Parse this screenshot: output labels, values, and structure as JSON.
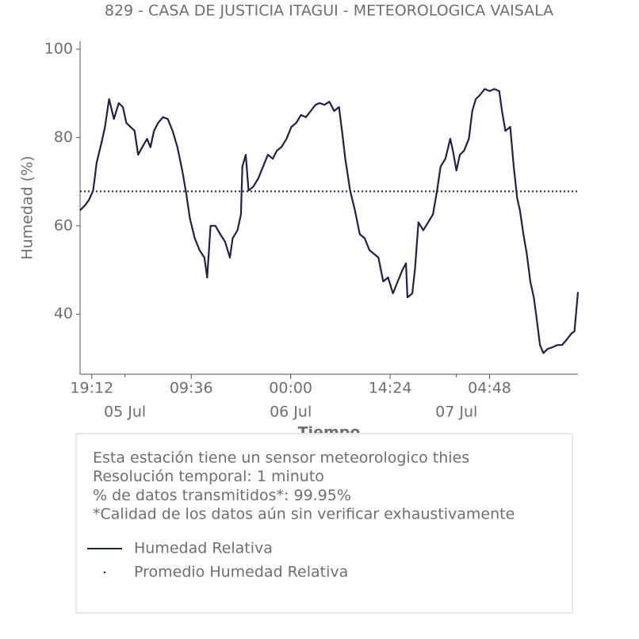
{
  "chart_data": {
    "type": "line",
    "title": "829 - CASA DE JUSTICIA ITAGUI - METEOROLOGICA VAISALA",
    "xlabel": "Tiempo",
    "ylabel": "Humedad (%)",
    "x": [
      -6.5,
      -5.7,
      -5.2,
      -4.6,
      -4.1,
      -3.4,
      -2.9,
      -2.3,
      -1.6,
      -0.9,
      -0.3,
      0.2,
      0.8,
      1.4,
      1.9,
      2.5,
      3.2,
      3.7,
      4.2,
      4.8,
      5.5,
      6.2,
      6.9,
      7.6,
      8.3,
      8.9,
      9.4,
      10.1,
      10.8,
      11.5,
      11.9,
      12.4,
      13.1,
      13.8,
      14.5,
      15.2,
      15.6,
      16.3,
      16.8,
      17.0,
      17.5,
      17.9,
      18.6,
      19.3,
      20.0,
      20.7,
      21.4,
      22.0,
      22.7,
      23.4,
      24.1,
      24.8,
      25.5,
      26.2,
      26.9,
      27.6,
      28.2,
      28.9,
      29.6,
      30.3,
      31.0,
      31.5,
      31.9,
      32.6,
      33.3,
      34.0,
      34.7,
      35.4,
      36.1,
      36.7,
      37.4,
      38.1,
      38.8,
      39.5,
      40.2,
      40.7,
      40.9,
      41.6,
      42.0,
      42.5,
      43.2,
      43.9,
      44.6,
      45.2,
      45.7,
      46.4,
      47.1,
      47.5,
      48.0,
      48.5,
      49.1,
      49.8,
      50.3,
      50.8,
      51.4,
      52.1,
      52.8,
      53.5,
      54.2,
      54.6,
      55.1,
      55.8,
      56.3,
      56.8,
      57.2,
      57.7,
      58.2,
      58.7,
      59.2,
      59.6,
      60.1,
      60.6,
      61.2,
      61.9,
      62.6,
      63.3,
      64.0,
      64.7,
      65.1,
      65.6
    ],
    "series": [
      {
        "name": "Humedad Relativa",
        "color": "#20204a",
        "values": [
          63.5,
          64.8,
          65.9,
          68,
          74.3,
          78.8,
          82.4,
          88.7,
          84.2,
          87.8,
          86.9,
          83.3,
          82.4,
          81.5,
          76.1,
          77.8,
          79.7,
          77.8,
          81.5,
          83.3,
          84.6,
          84.2,
          81.5,
          77.8,
          72.5,
          67.1,
          61.7,
          57.2,
          54.5,
          52.8,
          48.3,
          60,
          60,
          58.1,
          56.4,
          52.8,
          57.2,
          59,
          62.6,
          73.4,
          76.1,
          68,
          68.9,
          70.7,
          73.4,
          76.1,
          75.2,
          77,
          77.9,
          79.7,
          82.4,
          83.3,
          85.1,
          84.6,
          86,
          87.4,
          87.8,
          87.4,
          88.1,
          86,
          86.9,
          80.6,
          75.2,
          68,
          63.5,
          58.1,
          57.2,
          54.5,
          53.6,
          52.8,
          47.4,
          48.3,
          44.7,
          47.4,
          50.1,
          51.5,
          43.8,
          44.7,
          50.1,
          60.8,
          59,
          60.8,
          62.6,
          68,
          73.4,
          75.2,
          79.7,
          77,
          72.5,
          76.1,
          77,
          79.7,
          86,
          88.7,
          89.6,
          91,
          90.5,
          91,
          90.5,
          86,
          81.5,
          82.4,
          73.4,
          66.2,
          63.5,
          58.1,
          53.6,
          47.4,
          43.8,
          39.3,
          33,
          31.2,
          32.1,
          32.5,
          33,
          33,
          34.3,
          35.7,
          36.1,
          45
        ]
      }
    ],
    "mean_line": {
      "name": "Promedio Humedad Relativa",
      "color": "#20204a",
      "value": 67.8
    },
    "xlim": [
      -6.5,
      65.6
    ],
    "xticks": [
      {
        "value": -4.8,
        "label": "19:12"
      },
      {
        "value": 9.6,
        "label": "09:36"
      },
      {
        "value": 24,
        "label": "00:00"
      },
      {
        "value": 38.4,
        "label": "14:24"
      },
      {
        "value": 52.8,
        "label": "04:48"
      }
    ],
    "xticks_minor": [
      {
        "value": 0,
        "label": "05 Jul"
      },
      {
        "value": 24,
        "label": "06 Jul"
      },
      {
        "value": 48,
        "label": "07 Jul"
      }
    ],
    "ylim": [
      26.4,
      101.8
    ],
    "yticks": [
      40,
      60,
      80,
      100
    ],
    "notes": [
      "Esta estación tiene un sensor meteorologico thies",
      "Resolución temporal: 1 minuto",
      "% de datos transmitidos*: 99.95%",
      "*Calidad de los datos aún sin verificar exhaustivamente"
    ]
  }
}
